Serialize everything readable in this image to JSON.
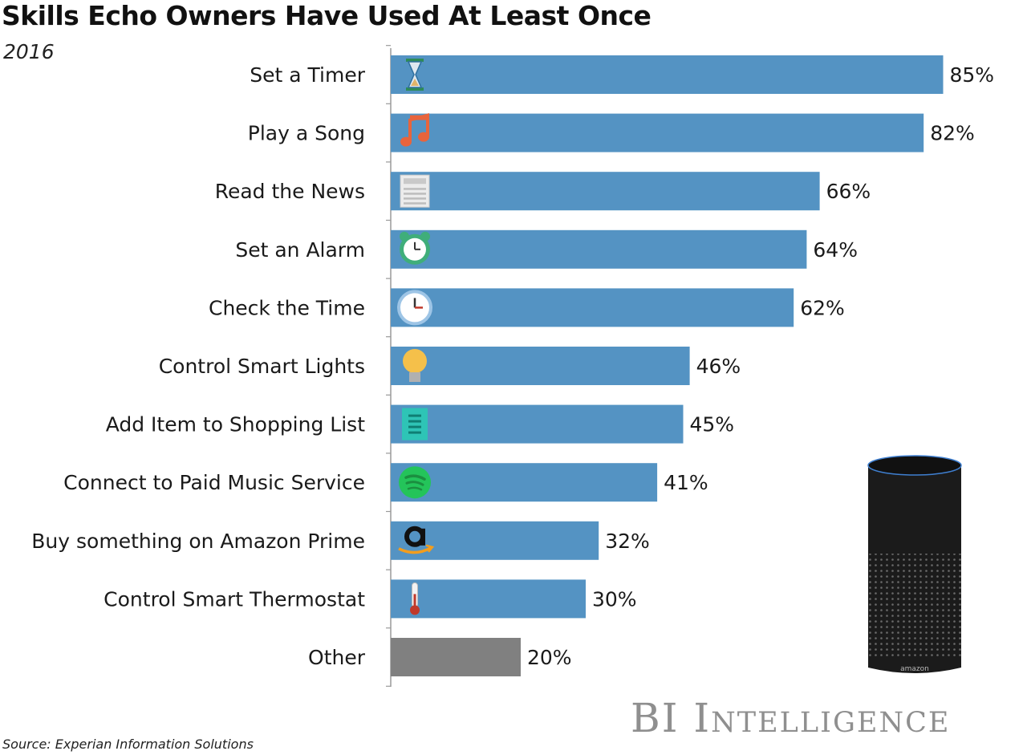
{
  "chart_data": {
    "type": "bar",
    "orientation": "horizontal",
    "title": "Skills Echo Owners Have Used At Least Once",
    "subtitle": "2016",
    "categories": [
      "Set a Timer",
      "Play a Song",
      "Read the News",
      "Set an Alarm",
      "Check the Time",
      "Control Smart Lights",
      "Add Item to Shopping List",
      "Connect to Paid Music Service",
      "Buy something on Amazon Prime",
      "Control Smart Thermostat",
      "Other"
    ],
    "values": [
      85,
      82,
      66,
      64,
      62,
      46,
      45,
      41,
      32,
      30,
      20
    ],
    "value_labels": [
      "85%",
      "82%",
      "66%",
      "64%",
      "62%",
      "46%",
      "45%",
      "41%",
      "32%",
      "30%",
      "20%"
    ],
    "icons": [
      "hourglass-icon",
      "music-note-icon",
      "newspaper-icon",
      "alarm-clock-icon",
      "clock-icon",
      "light-bulb-icon",
      "shopping-list-icon",
      "spotify-icon",
      "amazon-icon",
      "thermometer-icon",
      ""
    ],
    "xlim": [
      0,
      100
    ],
    "grid": false,
    "colors": {
      "bar": "#5493c3",
      "other_bar": "#808080"
    },
    "source": "Source: Experian Information Solutions",
    "brand": "BI Intelligence",
    "device_logo": "amazon"
  }
}
